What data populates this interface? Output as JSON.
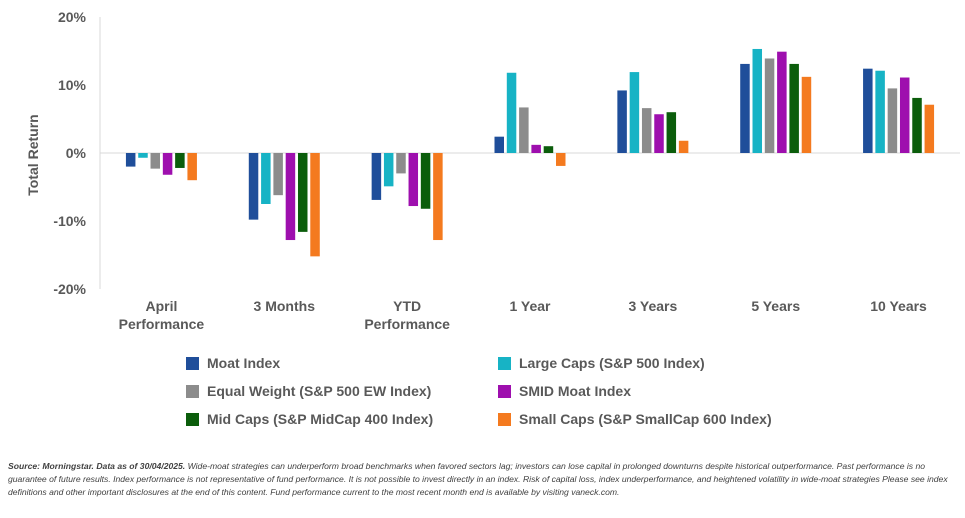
{
  "chart_data": {
    "type": "bar",
    "ylabel": "Total Return",
    "ylim": [
      -20,
      20
    ],
    "yticks": [
      {
        "value": 20,
        "label": "20%"
      },
      {
        "value": 10,
        "label": "10%"
      },
      {
        "value": 0,
        "label": "0%"
      },
      {
        "value": -10,
        "label": "-10%"
      },
      {
        "value": -20,
        "label": "-20%"
      }
    ],
    "categories": [
      [
        "April",
        "Performance"
      ],
      [
        "3 Months"
      ],
      [
        "YTD",
        "Performance"
      ],
      [
        "1 Year"
      ],
      [
        "3 Years"
      ],
      [
        "5 Years"
      ],
      [
        "10 Years"
      ]
    ],
    "series": [
      {
        "name": "Moat Index",
        "color": "#1F4E9A",
        "values": [
          -2.0,
          -9.8,
          -6.9,
          2.4,
          9.2,
          13.1,
          12.4
        ]
      },
      {
        "name": "Large Caps (S&P 500 Index)",
        "color": "#17B3C5",
        "values": [
          -0.7,
          -7.5,
          -4.9,
          11.8,
          11.9,
          15.3,
          12.1
        ]
      },
      {
        "name": "Equal Weight (S&P 500 EW Index)",
        "color": "#8C8C8C",
        "values": [
          -2.3,
          -6.2,
          -3.0,
          6.7,
          6.6,
          13.9,
          9.5
        ]
      },
      {
        "name": "SMID Moat Index",
        "color": "#9E0FAE",
        "values": [
          -3.2,
          -12.8,
          -7.8,
          1.2,
          5.7,
          14.9,
          11.1
        ]
      },
      {
        "name": "Mid Caps (S&P MidCap 400 Index)",
        "color": "#0B5D0B",
        "values": [
          -2.2,
          -11.6,
          -8.2,
          1.0,
          6.0,
          13.1,
          8.1
        ]
      },
      {
        "name": "Small Caps (S&P SmallCap 600 Index)",
        "color": "#F47A1F",
        "values": [
          -4.0,
          -15.2,
          -12.8,
          -1.9,
          1.8,
          11.2,
          7.1
        ]
      }
    ],
    "grid": false,
    "legend_position": "bottom"
  },
  "footnote": {
    "source": "Source: Morningstar. Data as of 30/04/2025.",
    "text": " Wide-moat strategies can underperform broad benchmarks when favored sectors lag; investors can lose capital in prolonged downturns despite historical outperformance. Past performance is no guarantee of future results. Index performance is not representative of fund performance. It is not possible to invest directly in an index. Risk of capital loss, index underperformance, and heightened volatility in wide-moat strategies Please see index definitions and other important disclosures at the end of this content. Fund performance current to the most recent month end is available by visiting vaneck.com."
  }
}
